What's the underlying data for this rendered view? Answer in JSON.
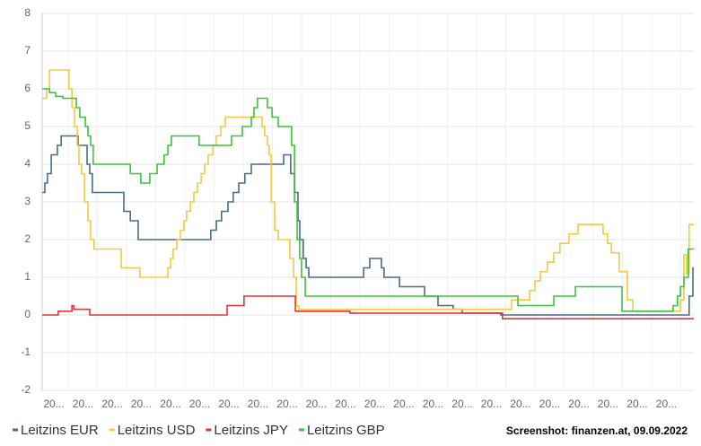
{
  "chart_data": {
    "type": "line",
    "step": true,
    "xlim": [
      0,
      22.34
    ],
    "xticks": [
      {
        "value": 0.4,
        "label": "20..."
      },
      {
        "value": 1.4,
        "label": "20..."
      },
      {
        "value": 2.4,
        "label": "20..."
      },
      {
        "value": 3.4,
        "label": "20..."
      },
      {
        "value": 4.4,
        "label": "20..."
      },
      {
        "value": 5.4,
        "label": "20..."
      },
      {
        "value": 6.4,
        "label": "20..."
      },
      {
        "value": 7.4,
        "label": "20..."
      },
      {
        "value": 8.4,
        "label": "20..."
      },
      {
        "value": 9.4,
        "label": "20..."
      },
      {
        "value": 10.4,
        "label": "20..."
      },
      {
        "value": 11.4,
        "label": "20..."
      },
      {
        "value": 12.4,
        "label": "20..."
      },
      {
        "value": 13.4,
        "label": "20..."
      },
      {
        "value": 14.4,
        "label": "20..."
      },
      {
        "value": 15.4,
        "label": "20..."
      },
      {
        "value": 16.4,
        "label": "20..."
      },
      {
        "value": 17.4,
        "label": "20..."
      },
      {
        "value": 18.4,
        "label": "20..."
      },
      {
        "value": 19.4,
        "label": "20..."
      },
      {
        "value": 20.4,
        "label": "20..."
      },
      {
        "value": 21.4,
        "label": "20..."
      }
    ],
    "ylim": [
      -2,
      8
    ],
    "yticks": [
      -2,
      -1,
      0,
      1,
      2,
      3,
      4,
      5,
      6,
      7,
      8
    ],
    "grid": true,
    "series": [
      {
        "name": "Leitzins EUR",
        "color": "#4a6b8a",
        "x": [
          0,
          0.09,
          0.18,
          0.31,
          0.52,
          0.65,
          1.23,
          1.54,
          1.63,
          1.72,
          2.8,
          3.02,
          3.29,
          5.78,
          5.97,
          6.15,
          6.37,
          6.55,
          6.74,
          6.95,
          7.17,
          8.28,
          8.52,
          8.65,
          8.77,
          8.83,
          8.95,
          9.05,
          9.14,
          11.02,
          11.23,
          11.63,
          11.72,
          12.25,
          13.11,
          13.57,
          14.09,
          14.4,
          15.72,
          22.18,
          22.31
        ],
        "values": [
          3.25,
          3.5,
          3.75,
          4.25,
          4.5,
          4.75,
          4.5,
          4.0,
          3.75,
          3.25,
          2.75,
          2.5,
          2.0,
          2.25,
          2.5,
          2.75,
          3.0,
          3.25,
          3.5,
          3.75,
          4.0,
          4.25,
          3.75,
          3.25,
          2.5,
          2.0,
          1.5,
          1.25,
          1.0,
          1.25,
          1.5,
          1.25,
          1.0,
          0.75,
          0.5,
          0.25,
          0.15,
          0.05,
          0.0,
          0.5,
          1.25
        ]
      },
      {
        "name": "Leitzins USD",
        "color": "#f5c842",
        "x": [
          0,
          0.15,
          0.25,
          0.92,
          1.02,
          1.11,
          1.2,
          1.26,
          1.35,
          1.45,
          1.57,
          1.66,
          1.78,
          2.71,
          3.35,
          4.31,
          4.4,
          4.49,
          4.62,
          4.74,
          4.86,
          4.95,
          5.08,
          5.2,
          5.32,
          5.45,
          5.57,
          5.69,
          5.85,
          5.97,
          6.12,
          6.28,
          7.54,
          7.63,
          7.72,
          7.78,
          7.85,
          7.97,
          8.09,
          8.49,
          8.62,
          8.71,
          8.8,
          16.09,
          16.71,
          16.89,
          17.08,
          17.32,
          17.54,
          17.75,
          18.06,
          18.37,
          19.23,
          19.38,
          19.51,
          19.78,
          20.06,
          20.25,
          21.88,
          22.0,
          22.09,
          22.18
        ],
        "values": [
          5.75,
          6.0,
          6.5,
          6.0,
          5.5,
          5.0,
          4.5,
          4.0,
          3.75,
          3.0,
          2.5,
          2.0,
          1.75,
          1.25,
          1.0,
          1.25,
          1.5,
          1.75,
          2.0,
          2.25,
          2.5,
          2.75,
          3.0,
          3.25,
          3.5,
          3.75,
          4.0,
          4.25,
          4.5,
          4.75,
          5.0,
          5.25,
          5.0,
          4.75,
          4.5,
          4.25,
          3.0,
          2.25,
          2.0,
          1.5,
          1.0,
          0.25,
          0.15,
          0.4,
          0.65,
          0.9,
          1.15,
          1.4,
          1.65,
          1.9,
          2.15,
          2.4,
          2.15,
          1.9,
          1.65,
          1.15,
          0.4,
          0.1,
          0.4,
          1.6,
          1.1,
          2.4
        ]
      },
      {
        "name": "Leitzins JPY",
        "color": "#d9393b",
        "x": [
          0,
          0.55,
          1.02,
          1.08,
          1.63,
          6.34,
          6.92,
          8.68,
          10.55,
          15.78
        ],
        "values": [
          0,
          0.1,
          0.25,
          0.15,
          0,
          0.25,
          0.5,
          0.1,
          0.05,
          -0.1
        ]
      },
      {
        "name": "Leitzins GBP",
        "color": "#3cc43c",
        "x": [
          0,
          0.25,
          0.46,
          0.71,
          1.17,
          1.29,
          1.48,
          1.57,
          1.66,
          1.75,
          3.02,
          3.38,
          3.69,
          3.94,
          4.18,
          4.31,
          4.43,
          5.38,
          6.49,
          6.86,
          7.17,
          7.26,
          7.38,
          7.72,
          7.88,
          8.09,
          8.55,
          8.65,
          8.74,
          8.83,
          8.89,
          9.02,
          16.31,
          17.54,
          18.28,
          19.88,
          21.63,
          21.78,
          21.88,
          22.0,
          22.15
        ],
        "values": [
          6.0,
          5.9,
          5.8,
          5.75,
          5.5,
          5.25,
          5.0,
          4.75,
          4.5,
          4.0,
          3.75,
          3.5,
          3.75,
          4.0,
          4.25,
          4.5,
          4.75,
          4.5,
          4.75,
          5.0,
          5.25,
          5.5,
          5.75,
          5.5,
          5.25,
          5.0,
          4.5,
          3.0,
          2.0,
          1.5,
          1.0,
          0.5,
          0.25,
          0.5,
          0.75,
          0.1,
          0.25,
          0.5,
          0.75,
          1.0,
          1.75
        ]
      }
    ],
    "source": "Screenshot: finanzen.at, 09.09.2022"
  }
}
